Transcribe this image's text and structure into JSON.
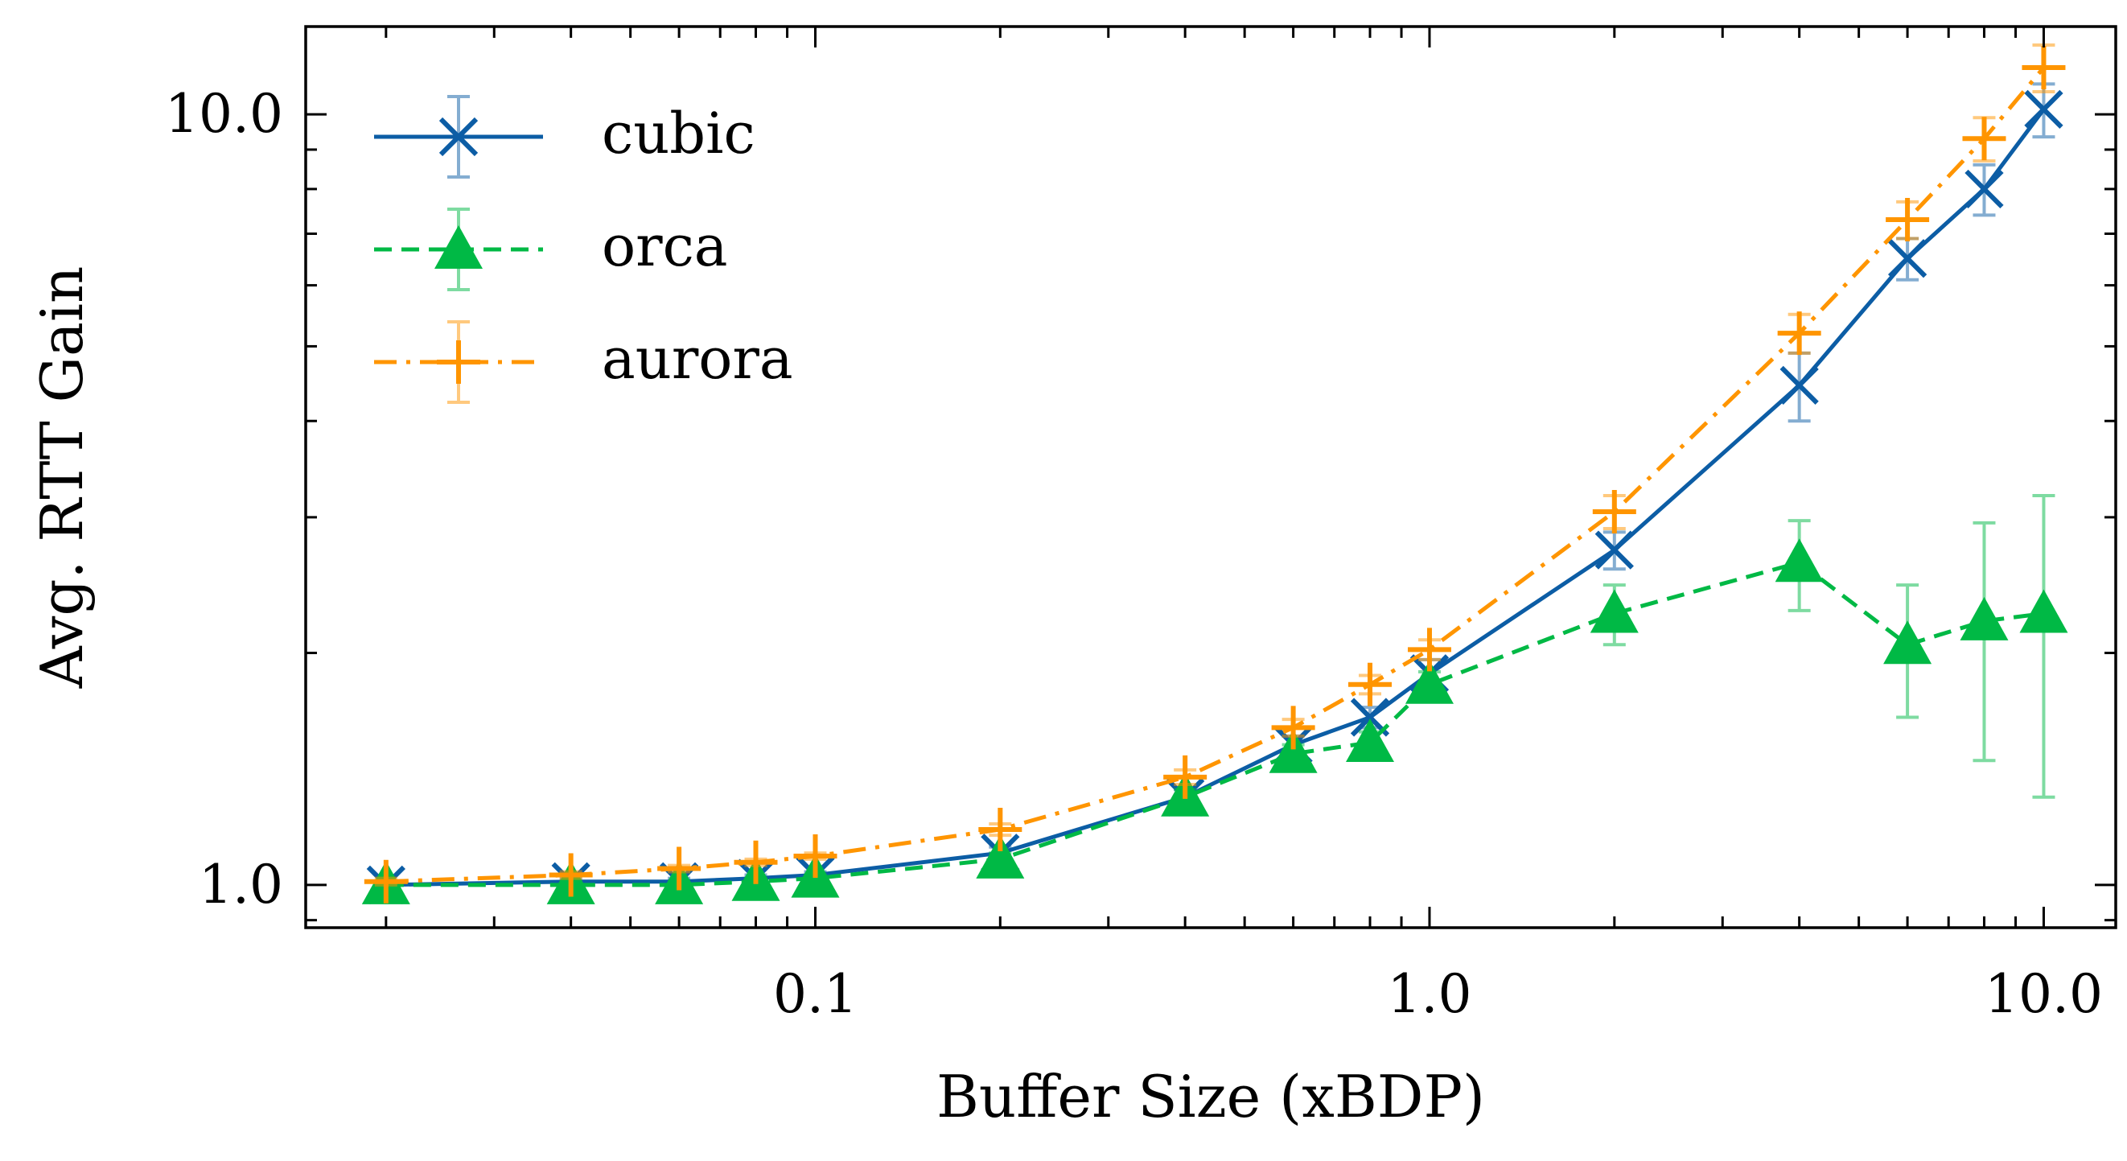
{
  "chart_data": {
    "type": "line",
    "title": "",
    "xlabel": "Buffer Size (xBDP)",
    "ylabel": "Avg. RTT Gain",
    "xscale": "log",
    "yscale": "log",
    "xlim": [
      0.0148,
      13.1
    ],
    "ylim": [
      0.88,
      13.0
    ],
    "xticks": [
      {
        "value": 0.1,
        "label": "0.1"
      },
      {
        "value": 1.0,
        "label": "1.0"
      },
      {
        "value": 10.0,
        "label": "10.0"
      }
    ],
    "yticks": [
      {
        "value": 1.0,
        "label": "1.0"
      },
      {
        "value": 10.0,
        "label": "10.0"
      }
    ],
    "grid": false,
    "legend": "top-left",
    "x": [
      0.02,
      0.04,
      0.06,
      0.08,
      0.1,
      0.2,
      0.4,
      0.6,
      0.8,
      1.0,
      2.0,
      4.0,
      6.0,
      8.0,
      10.0
    ],
    "series": [
      {
        "name": "cubic",
        "color": "#0C5DA5",
        "linestyle": "solid",
        "marker": "x",
        "values": [
          1.0,
          1.01,
          1.01,
          1.02,
          1.03,
          1.1,
          1.3,
          1.52,
          1.65,
          1.88,
          2.72,
          4.45,
          6.5,
          8.0,
          10.15
        ],
        "errors": [
          0.01,
          0.01,
          0.01,
          0.01,
          0.01,
          0.02,
          0.03,
          0.04,
          0.05,
          0.08,
          0.15,
          0.45,
          0.4,
          0.6,
          0.8
        ]
      },
      {
        "name": "orca",
        "color": "#00B945",
        "linestyle": "dashed",
        "marker": "triangle",
        "values": [
          1.0,
          1.0,
          1.0,
          1.01,
          1.02,
          1.08,
          1.3,
          1.48,
          1.53,
          1.82,
          2.25,
          2.62,
          2.05,
          2.2,
          2.25
        ],
        "errors": [
          0.01,
          0.01,
          0.01,
          0.01,
          0.01,
          0.02,
          0.03,
          0.04,
          0.05,
          0.07,
          0.2,
          0.35,
          0.4,
          0.75,
          0.95
        ]
      },
      {
        "name": "aurora",
        "color": "#FF9500",
        "linestyle": "dashdot",
        "marker": "plus",
        "values": [
          1.01,
          1.03,
          1.05,
          1.07,
          1.09,
          1.18,
          1.38,
          1.6,
          1.82,
          2.02,
          3.05,
          5.2,
          7.3,
          9.3,
          11.5
        ],
        "errors": [
          0.01,
          0.01,
          0.01,
          0.01,
          0.01,
          0.02,
          0.03,
          0.04,
          0.05,
          0.06,
          0.15,
          0.3,
          0.4,
          0.6,
          0.8
        ]
      }
    ]
  }
}
